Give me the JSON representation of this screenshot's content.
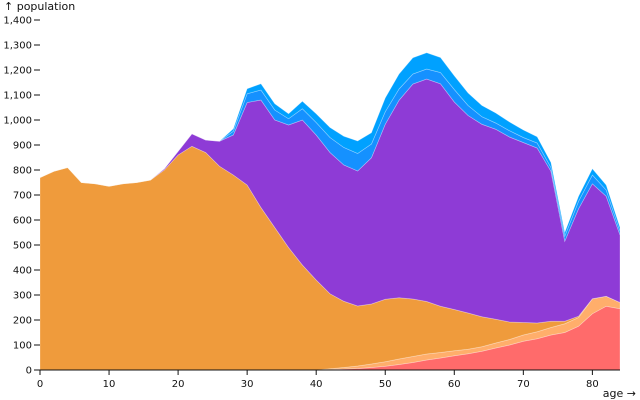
{
  "chart_data": {
    "type": "area",
    "stacked": true,
    "xlabel": "age →",
    "ylabel": "↑ population",
    "xlim": [
      0,
      84
    ],
    "ylim": [
      0,
      1400
    ],
    "x_ticks": [
      "0",
      "10",
      "20",
      "30",
      "40",
      "50",
      "60",
      "70",
      "80"
    ],
    "y_ticks": [
      "0",
      "100",
      "200",
      "300",
      "400",
      "500",
      "600",
      "700",
      "800",
      "900",
      "1,000",
      "1,100",
      "1,200",
      "1,300",
      "1,400"
    ],
    "x": [
      0,
      2,
      4,
      6,
      8,
      10,
      12,
      14,
      16,
      18,
      20,
      22,
      24,
      26,
      28,
      30,
      32,
      34,
      36,
      38,
      40,
      42,
      44,
      46,
      48,
      50,
      52,
      54,
      56,
      58,
      60,
      62,
      64,
      66,
      68,
      70,
      72,
      74,
      76,
      78,
      80,
      82,
      84
    ],
    "series": [
      {
        "color": "#ff6b6b",
        "values": [
          0,
          0,
          0,
          0,
          0,
          0,
          0,
          0,
          0,
          0,
          0,
          0,
          0,
          0,
          0,
          0,
          0,
          0,
          0,
          0,
          0,
          2,
          4,
          6,
          10,
          15,
          22,
          30,
          40,
          48,
          57,
          65,
          75,
          88,
          100,
          115,
          125,
          140,
          150,
          175,
          225,
          255,
          245
        ]
      },
      {
        "color": "#ffae6b",
        "values": [
          0,
          0,
          0,
          0,
          0,
          0,
          0,
          0,
          0,
          0,
          0,
          0,
          0,
          0,
          0,
          0,
          0,
          0,
          0,
          0,
          0,
          3,
          6,
          10,
          14,
          18,
          22,
          24,
          24,
          22,
          20,
          18,
          18,
          20,
          22,
          25,
          28,
          30,
          35,
          35,
          60,
          40,
          25
        ]
      },
      {
        "color": "#ef9b3c",
        "values": [
          770,
          795,
          810,
          750,
          745,
          735,
          745,
          750,
          760,
          800,
          860,
          895,
          870,
          815,
          780,
          740,
          650,
          570,
          490,
          420,
          360,
          300,
          265,
          240,
          240,
          250,
          245,
          230,
          210,
          185,
          165,
          145,
          120,
          95,
          70,
          50,
          35,
          25,
          10,
          5,
          0,
          0,
          0
        ]
      },
      {
        "color": "#8e3bd6",
        "values": [
          0,
          0,
          0,
          0,
          0,
          0,
          0,
          0,
          0,
          5,
          15,
          50,
          50,
          100,
          160,
          330,
          430,
          430,
          490,
          580,
          580,
          565,
          545,
          540,
          585,
          700,
          790,
          860,
          890,
          890,
          830,
          790,
          770,
          760,
          740,
          720,
          700,
          600,
          320,
          430,
          460,
          400,
          270
        ]
      },
      {
        "color": "#1591ff",
        "values": [
          0,
          0,
          0,
          0,
          0,
          0,
          0,
          0,
          0,
          0,
          0,
          0,
          0,
          0,
          15,
          35,
          40,
          40,
          25,
          45,
          50,
          60,
          70,
          70,
          55,
          50,
          45,
          40,
          40,
          45,
          50,
          40,
          30,
          25,
          25,
          20,
          20,
          15,
          20,
          30,
          35,
          25,
          15
        ]
      },
      {
        "color": "#00a1ff",
        "values": [
          0,
          0,
          0,
          0,
          0,
          0,
          0,
          0,
          0,
          0,
          0,
          0,
          0,
          0,
          10,
          20,
          25,
          25,
          20,
          30,
          35,
          40,
          45,
          50,
          45,
          55,
          60,
          65,
          65,
          60,
          55,
          50,
          45,
          40,
          35,
          30,
          25,
          20,
          15,
          20,
          25,
          20,
          15
        ]
      }
    ]
  }
}
